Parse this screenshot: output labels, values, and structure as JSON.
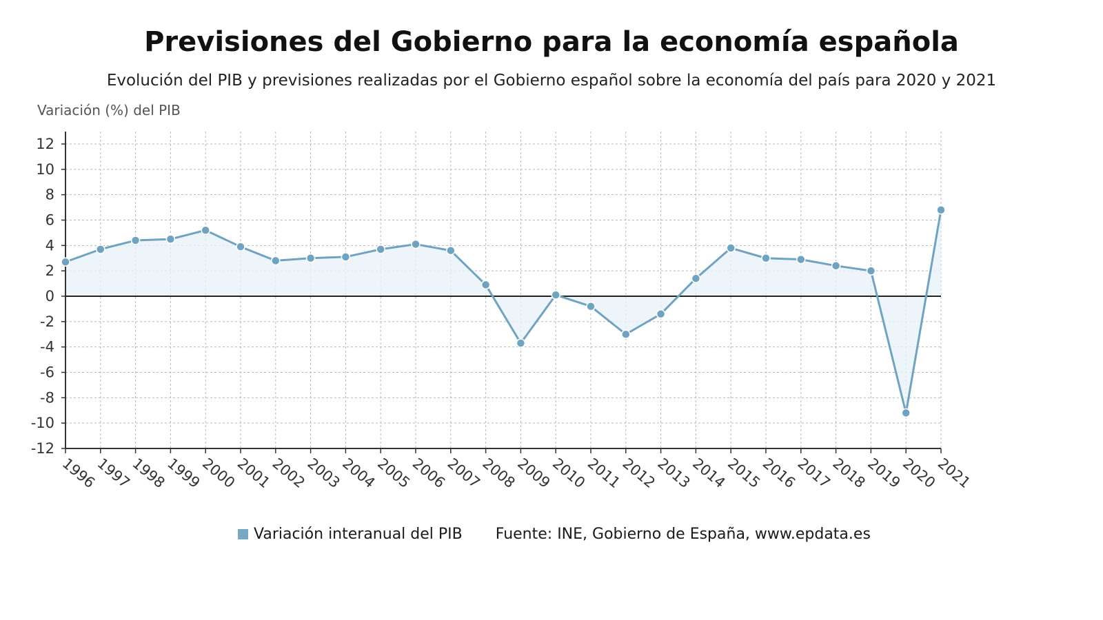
{
  "title": "Previsiones del Gobierno para la economía española",
  "subtitle": "Evolución del PIB y previsiones realizadas por el Gobierno español sobre la economía del país para 2020 y 2021",
  "legend": {
    "series_label": "Variación interanual del PIB",
    "source": "Fuente: INE, Gobierno de España, www.epdata.es"
  },
  "colors": {
    "line": "#6fa3c2",
    "marker": "#6fa3c2",
    "fill": "#e8f1f8",
    "zero_line": "#222222",
    "grid": "#b8b8b8"
  },
  "chart_data": {
    "type": "area",
    "title": "Previsiones del Gobierno para la economía española",
    "ylabel": "Variación (%) del PIB",
    "xlabel": "",
    "ylim": [
      -12,
      12
    ],
    "yticks": [
      12,
      10,
      8,
      6,
      4,
      2,
      0,
      -2,
      -4,
      -6,
      -8,
      -10,
      -12
    ],
    "grid": true,
    "legend_position": "bottom",
    "categories": [
      "1996",
      "1997",
      "1998",
      "1999",
      "2000",
      "2001",
      "2002",
      "2003",
      "2004",
      "2005",
      "2006",
      "2007",
      "2008",
      "2009",
      "2010",
      "2011",
      "2012",
      "2013",
      "2014",
      "2015",
      "2016",
      "2017",
      "2018",
      "2019",
      "2020",
      "2021"
    ],
    "series": [
      {
        "name": "Variación interanual del PIB",
        "values": [
          2.7,
          3.7,
          4.4,
          4.5,
          5.2,
          3.9,
          2.8,
          3.0,
          3.1,
          3.7,
          4.1,
          3.6,
          0.9,
          -3.7,
          0.1,
          -0.8,
          -3.0,
          -1.4,
          1.4,
          3.8,
          3.0,
          2.9,
          2.4,
          2.0,
          -9.2,
          6.8
        ]
      }
    ]
  }
}
